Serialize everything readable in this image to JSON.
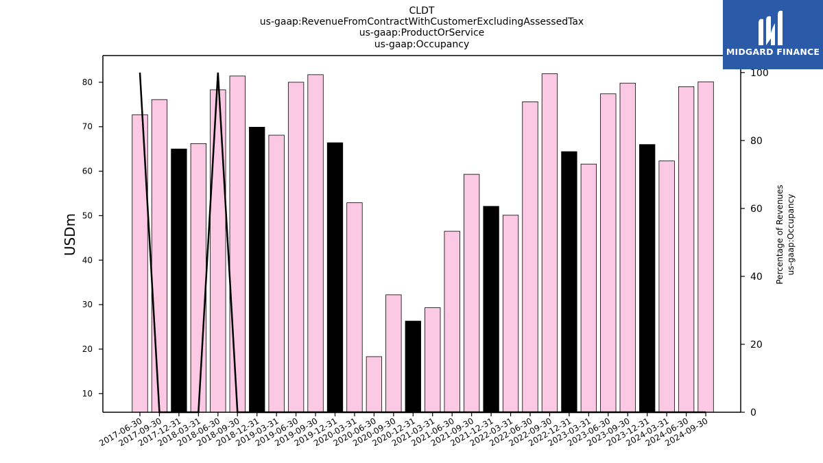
{
  "brand": {
    "name": "MIDGARD FINANCE",
    "bg_color": "#2b5aa8",
    "icon": "midgard-logo-icon"
  },
  "chart_data": {
    "type": "bar",
    "title_lines": [
      "CLDT",
      "us-gaap:RevenueFromContractWithCustomerExcludingAssessedTax",
      "us-gaap:ProductOrService",
      "us-gaap:Occupancy"
    ],
    "ylabel": "USDm",
    "ylabel_right": [
      "Percentage of Revenues",
      "us-gaap:Occupancy"
    ],
    "ylim": [
      5.8,
      86.0
    ],
    "ylim_right": [
      0,
      105
    ],
    "yticks": [
      10,
      20,
      30,
      40,
      50,
      60,
      70,
      80
    ],
    "yticks_right": [
      0,
      20,
      40,
      60,
      80,
      100
    ],
    "colors": {
      "bar_default": "#fbc9e3",
      "bar_q4": "#000000",
      "line": "#000000"
    },
    "categories": [
      "2017-06-30",
      "2017-09-30",
      "2017-12-31",
      "2018-03-31",
      "2018-06-30",
      "2018-09-30",
      "2018-12-31",
      "2019-03-31",
      "2019-06-30",
      "2019-09-30",
      "2019-12-31",
      "2020-03-31",
      "2020-06-30",
      "2020-09-30",
      "2020-12-31",
      "2021-03-31",
      "2021-06-30",
      "2021-09-30",
      "2021-12-31",
      "2022-03-31",
      "2022-06-30",
      "2022-09-30",
      "2022-12-31",
      "2023-03-31",
      "2023-06-30",
      "2023-09-30",
      "2023-12-31",
      "2024-03-31",
      "2024-06-30",
      "2024-09-30"
    ],
    "series": [
      {
        "type": "bar",
        "values": [
          72.7,
          76.1,
          65.0,
          66.2,
          78.3,
          81.4,
          69.9,
          68.1,
          80.0,
          81.7,
          66.4,
          52.9,
          18.3,
          32.2,
          26.3,
          29.3,
          46.5,
          59.3,
          52.1,
          50.1,
          75.6,
          81.9,
          64.4,
          61.6,
          77.4,
          79.8,
          66.0,
          62.3,
          79.0,
          80.1
        ],
        "highlight": [
          false,
          false,
          true,
          false,
          false,
          false,
          true,
          false,
          false,
          false,
          true,
          false,
          false,
          false,
          true,
          false,
          false,
          false,
          true,
          false,
          false,
          false,
          true,
          false,
          false,
          false,
          true,
          false,
          false,
          false
        ]
      },
      {
        "type": "line",
        "axis": "right",
        "values": [
          100,
          0,
          0,
          0,
          100,
          0,
          0,
          0,
          0,
          0,
          0,
          0,
          0,
          0,
          0,
          0,
          0,
          0,
          0,
          0,
          0,
          0,
          0,
          0,
          0,
          0,
          0,
          0,
          0,
          0
        ]
      }
    ]
  }
}
